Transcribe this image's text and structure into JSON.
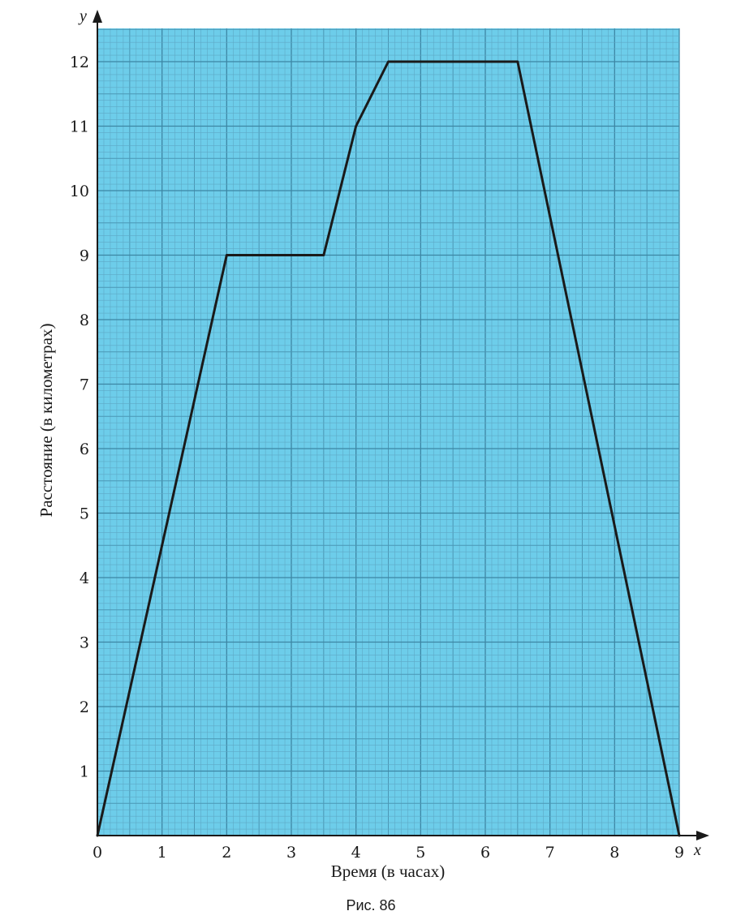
{
  "chart_data": {
    "type": "line",
    "xlabel": "Время (в часах)",
    "ylabel": "Расстояние (в километрах)",
    "x_axis_letter": "x",
    "y_axis_letter": "y",
    "xlim": [
      0,
      9
    ],
    "ylim": [
      0,
      12.5
    ],
    "x_ticks": [
      "0",
      "1",
      "2",
      "3",
      "4",
      "5",
      "6",
      "7",
      "8",
      "9"
    ],
    "y_ticks": [
      "1",
      "2",
      "3",
      "4",
      "5",
      "6",
      "7",
      "8",
      "9",
      "10",
      "11",
      "12"
    ],
    "grid": true,
    "grid_minor_step": 0.1,
    "background_color": "#6dcdea",
    "line_color": "#1a1a1a",
    "series": [
      {
        "x": [
          0,
          2,
          3.5,
          4,
          4.5,
          6.5,
          9
        ],
        "values": [
          0,
          9,
          9,
          11,
          12,
          12,
          0
        ]
      }
    ]
  },
  "caption": "Рис. 86"
}
